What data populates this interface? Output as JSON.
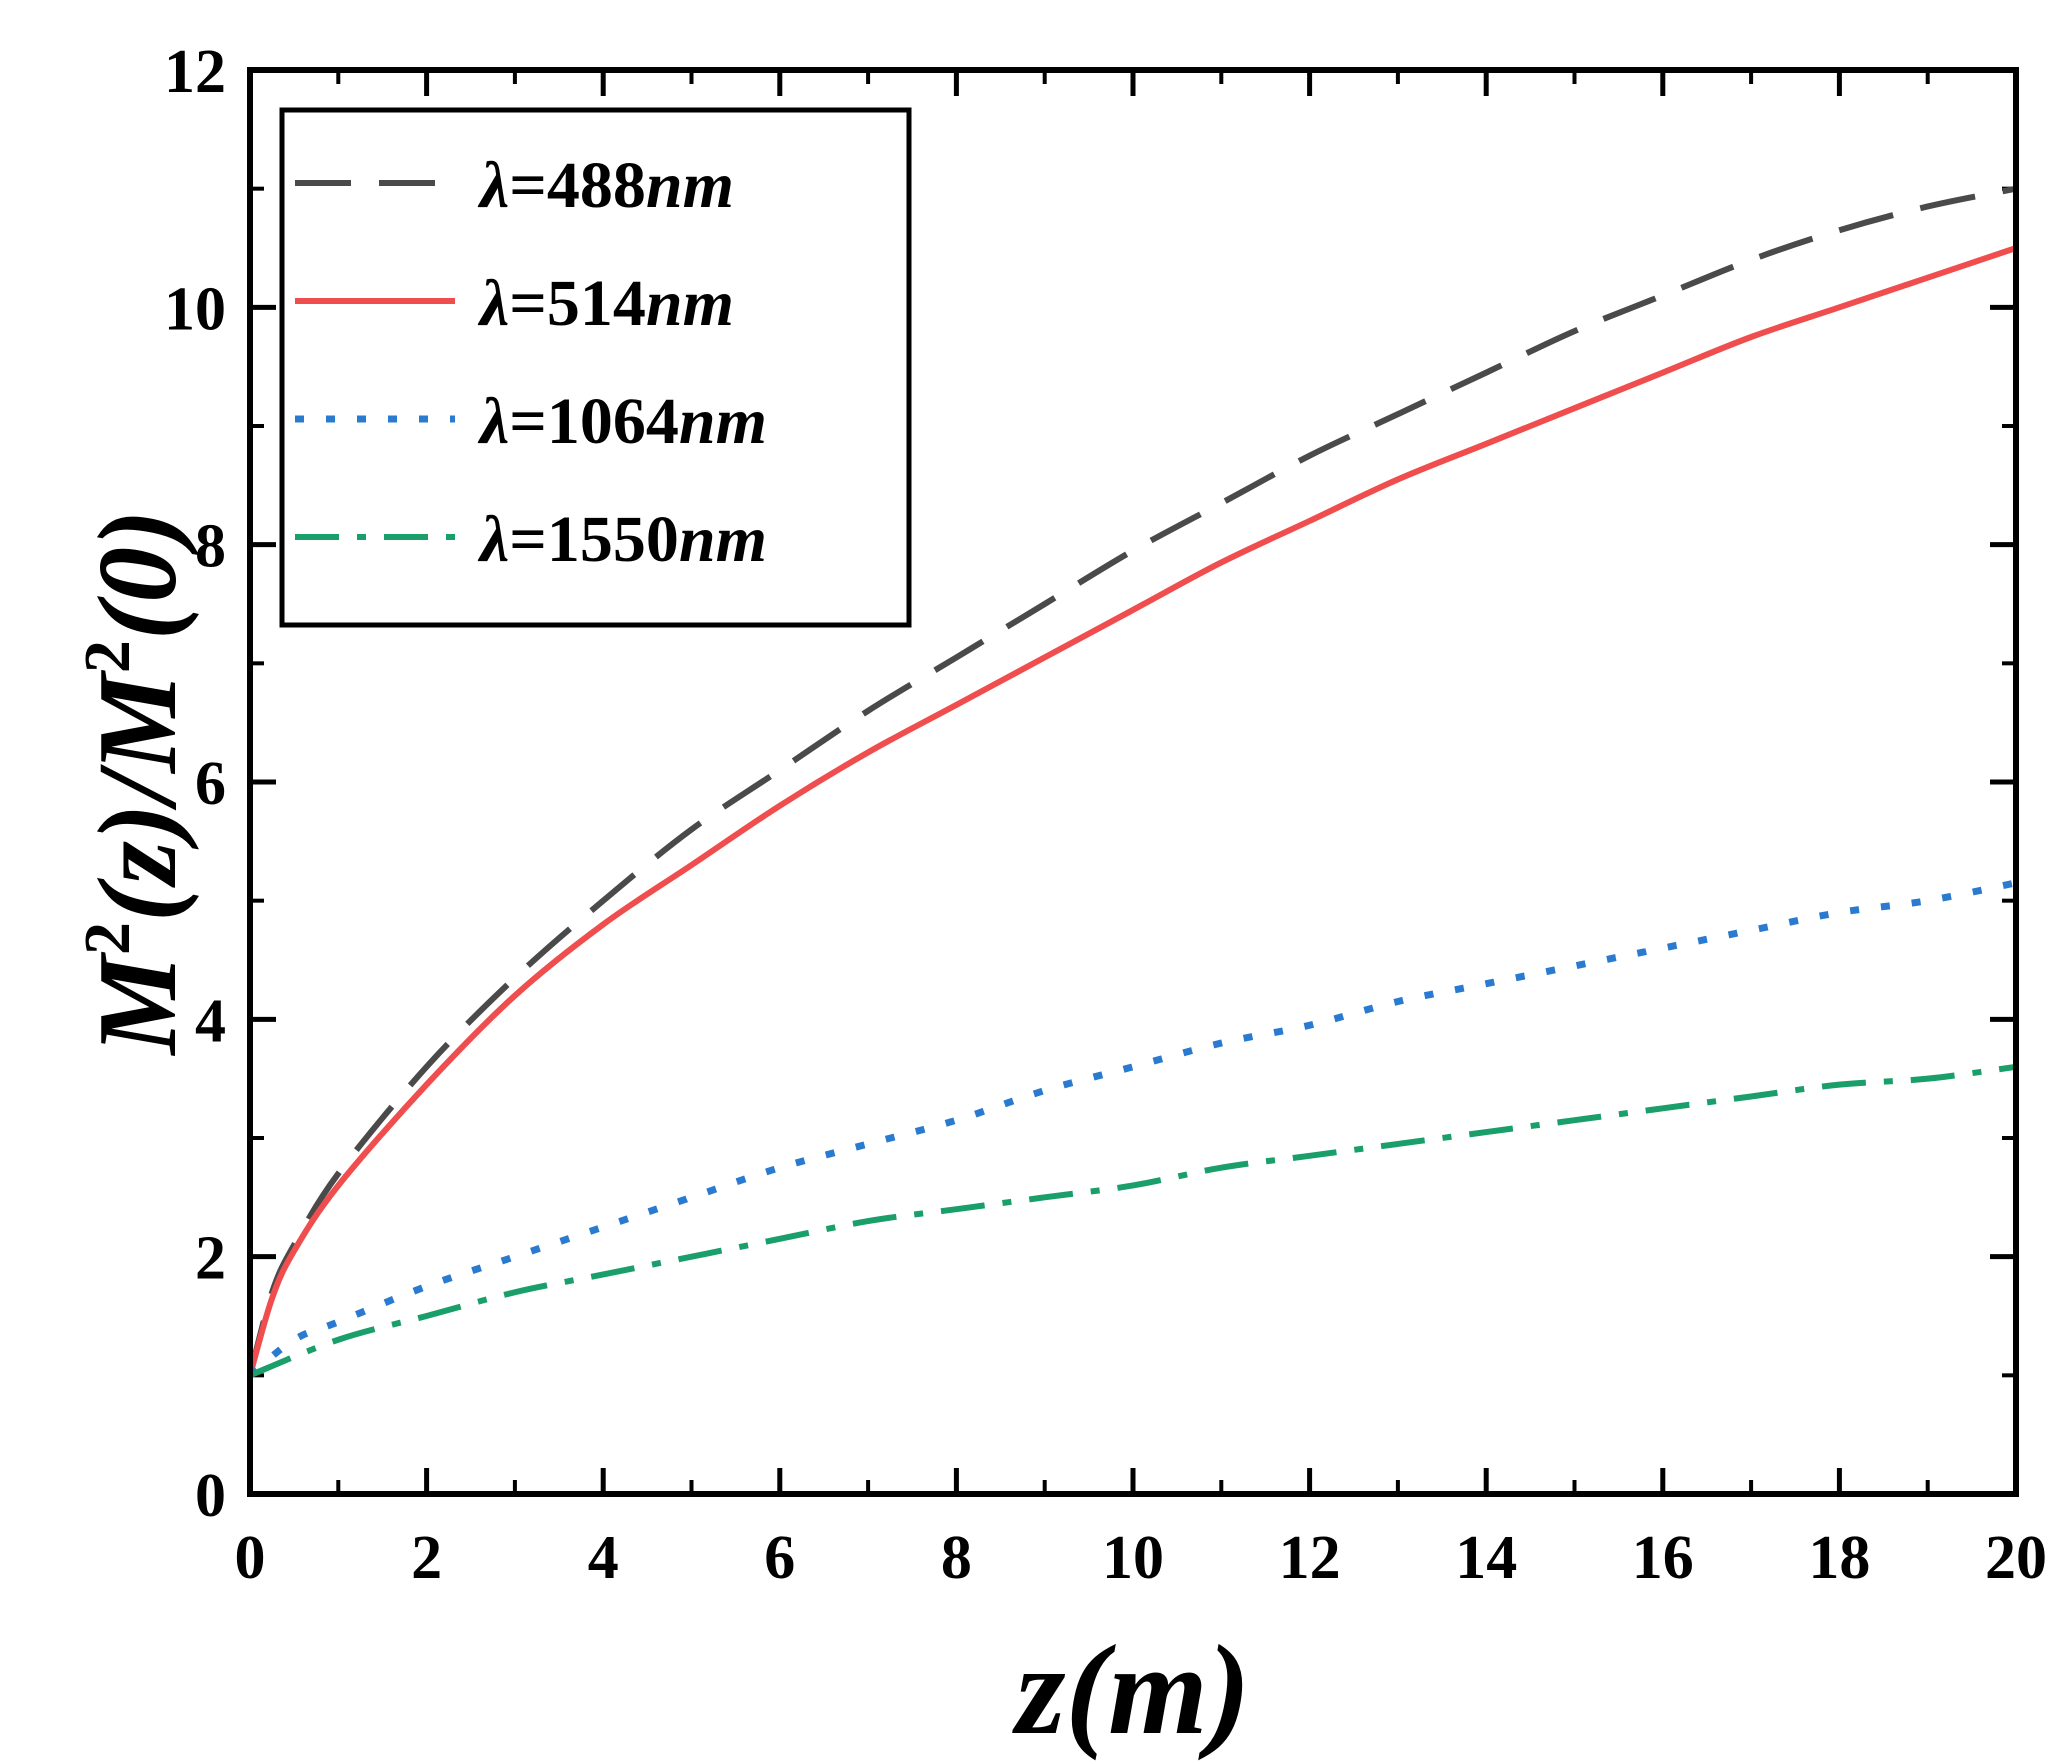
{
  "chart_data": {
    "type": "line",
    "title": "",
    "xlabel": "z(m)",
    "ylabel_parts": {
      "m1": "M",
      "sup1": "2",
      "arg1": "(z)/",
      "m2": "M",
      "sup2": "2",
      "arg2": "(0)"
    },
    "xlim": [
      0,
      20
    ],
    "ylim": [
      0,
      12
    ],
    "xticks": [
      0,
      2,
      4,
      6,
      8,
      10,
      12,
      14,
      16,
      18,
      20
    ],
    "yticks": [
      0,
      2,
      4,
      6,
      8,
      10,
      12
    ],
    "legend_position": "top-left",
    "series": [
      {
        "name": "λ=488nm",
        "prefix": "λ",
        "value": "=488",
        "unit": "nm",
        "color": "#4a4a4a",
        "style": "dashed",
        "x": [
          0,
          0.25,
          0.5,
          1,
          2,
          3,
          4,
          5,
          6,
          7,
          8,
          9,
          10,
          11,
          12,
          13,
          14,
          15,
          16,
          17,
          18,
          19,
          20
        ],
        "y": [
          1.0,
          1.7,
          2.1,
          2.7,
          3.6,
          4.35,
          5.0,
          5.6,
          6.1,
          6.6,
          7.05,
          7.5,
          7.95,
          8.35,
          8.75,
          9.1,
          9.45,
          9.8,
          10.1,
          10.4,
          10.65,
          10.85,
          11.0
        ]
      },
      {
        "name": "λ=514nm",
        "prefix": "λ",
        "value": "=514",
        "unit": "nm",
        "color": "#f04e4e",
        "style": "solid",
        "x": [
          0,
          0.25,
          0.5,
          1,
          2,
          3,
          4,
          5,
          6,
          7,
          8,
          9,
          10,
          11,
          12,
          13,
          14,
          15,
          16,
          17,
          18,
          19,
          20
        ],
        "y": [
          1.0,
          1.65,
          2.05,
          2.6,
          3.45,
          4.2,
          4.8,
          5.3,
          5.8,
          6.25,
          6.65,
          7.05,
          7.45,
          7.85,
          8.2,
          8.55,
          8.85,
          9.15,
          9.45,
          9.75,
          10.0,
          10.25,
          10.5
        ]
      },
      {
        "name": "λ=1064nm",
        "prefix": "λ",
        "value": "=1064",
        "unit": "nm",
        "color": "#2a7bd0",
        "style": "dotted",
        "x": [
          0,
          0.5,
          1,
          2,
          3,
          4,
          5,
          6,
          7,
          8,
          9,
          10,
          11,
          12,
          13,
          14,
          15,
          16,
          17,
          18,
          19,
          20
        ],
        "y": [
          1.0,
          1.3,
          1.45,
          1.75,
          2.0,
          2.25,
          2.5,
          2.75,
          2.95,
          3.15,
          3.4,
          3.6,
          3.8,
          3.95,
          4.15,
          4.3,
          4.45,
          4.6,
          4.75,
          4.9,
          5.0,
          5.15
        ]
      },
      {
        "name": "λ=1550nm",
        "prefix": "λ",
        "value": "=1550",
        "unit": "nm",
        "color": "#1a9e6a",
        "style": "dashdot",
        "x": [
          0,
          1,
          2,
          3,
          4,
          5,
          6,
          7,
          8,
          9,
          10,
          11,
          12,
          13,
          14,
          15,
          16,
          17,
          18,
          19,
          20
        ],
        "y": [
          1.0,
          1.3,
          1.5,
          1.7,
          1.85,
          2.0,
          2.15,
          2.3,
          2.4,
          2.5,
          2.6,
          2.75,
          2.85,
          2.95,
          3.05,
          3.15,
          3.25,
          3.35,
          3.45,
          3.5,
          3.6
        ]
      }
    ]
  }
}
